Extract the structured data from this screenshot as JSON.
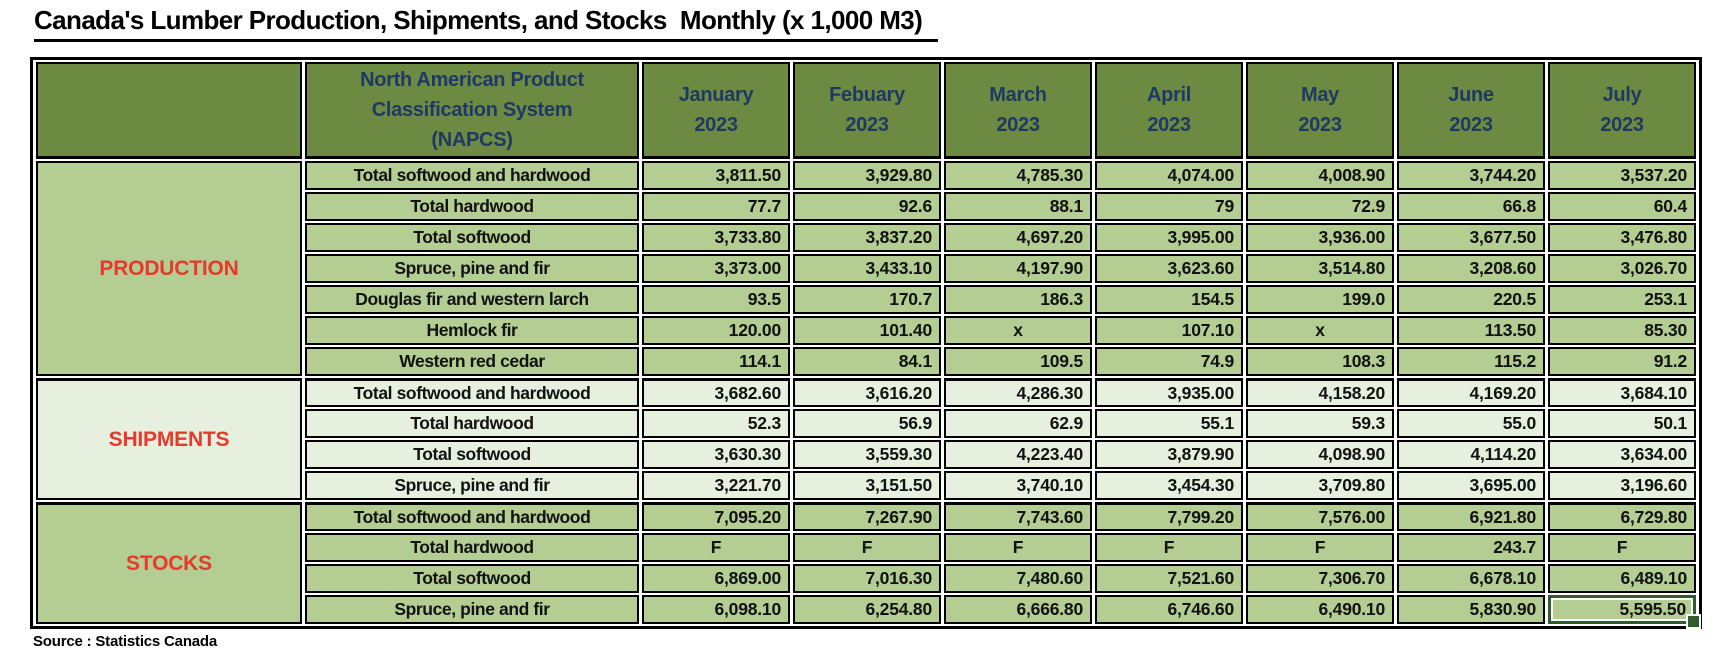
{
  "title": "Canada's Lumber Production, Shipments, and Stocks  Monthly (x 1,000 M3)",
  "source": "Source : Statistics Canada",
  "colors": {
    "header_bg": "#6d8a43",
    "header_text": "#1f3864",
    "production_stocks_bg": "#b3cd93",
    "shipments_bg": "#e7f0de",
    "section_label_text": "#e8392d",
    "border": "#000000",
    "selection_border": "#2f5c2f"
  },
  "table": {
    "napcs_header_lines": [
      "North American Product",
      "Classification System",
      "(NAPCS)"
    ],
    "months": [
      {
        "label": "January",
        "year": "2023"
      },
      {
        "label": "Febuary",
        "year": "2023"
      },
      {
        "label": "March",
        "year": "2023"
      },
      {
        "label": "April",
        "year": "2023"
      },
      {
        "label": "May",
        "year": "2023"
      },
      {
        "label": "June",
        "year": "2023"
      },
      {
        "label": "July",
        "year": "2023"
      }
    ],
    "sections": [
      {
        "label": "PRODUCTION",
        "tone": "green",
        "rows": [
          {
            "label": "Total softwood and hardwood",
            "values": [
              "3,811.50",
              "3,929.80",
              "4,785.30",
              "4,074.00",
              "4,008.90",
              "3,744.20",
              "3,537.20"
            ]
          },
          {
            "label": "Total hardwood",
            "values": [
              "77.7",
              "92.6",
              "88.1",
              "79",
              "72.9",
              "66.8",
              "60.4"
            ]
          },
          {
            "label": "Total softwood",
            "values": [
              "3,733.80",
              "3,837.20",
              "4,697.20",
              "3,995.00",
              "3,936.00",
              "3,677.50",
              "3,476.80"
            ]
          },
          {
            "label": "Spruce, pine and fir",
            "values": [
              "3,373.00",
              "3,433.10",
              "4,197.90",
              "3,623.60",
              "3,514.80",
              "3,208.60",
              "3,026.70"
            ]
          },
          {
            "label": "Douglas fir and western larch",
            "values": [
              "93.5",
              "170.7",
              "186.3",
              "154.5",
              "199.0",
              "220.5",
              "253.1"
            ]
          },
          {
            "label": "Hemlock fir",
            "values": [
              "120.00",
              "101.40",
              "x",
              "107.10",
              "x",
              "113.50",
              "85.30"
            ]
          },
          {
            "label": "Western red cedar",
            "values": [
              "114.1",
              "84.1",
              "109.5",
              "74.9",
              "108.3",
              "115.2",
              "91.2"
            ]
          }
        ]
      },
      {
        "label": "SHIPMENTS",
        "tone": "pale",
        "rows": [
          {
            "label": "Total softwood and hardwood",
            "values": [
              "3,682.60",
              "3,616.20",
              "4,286.30",
              "3,935.00",
              "4,158.20",
              "4,169.20",
              "3,684.10"
            ]
          },
          {
            "label": "Total hardwood",
            "values": [
              "52.3",
              "56.9",
              "62.9",
              "55.1",
              "59.3",
              "55.0",
              "50.1"
            ]
          },
          {
            "label": "Total softwood",
            "values": [
              "3,630.30",
              "3,559.30",
              "4,223.40",
              "3,879.90",
              "4,098.90",
              "4,114.20",
              "3,634.00"
            ]
          },
          {
            "label": "Spruce, pine and fir",
            "values": [
              "3,221.70",
              "3,151.50",
              "3,740.10",
              "3,454.30",
              "3,709.80",
              "3,695.00",
              "3,196.60"
            ]
          }
        ]
      },
      {
        "label": "STOCKS",
        "tone": "green",
        "rows": [
          {
            "label": "Total softwood and hardwood",
            "values": [
              "7,095.20",
              "7,267.90",
              "7,743.60",
              "7,799.20",
              "7,576.00",
              "6,921.80",
              "6,729.80"
            ]
          },
          {
            "label": "Total hardwood",
            "values": [
              "F",
              "F",
              "F",
              "F",
              "F",
              "243.7",
              "F"
            ]
          },
          {
            "label": "Total softwood",
            "values": [
              "6,869.00",
              "7,016.30",
              "7,480.60",
              "7,521.60",
              "7,306.70",
              "6,678.10",
              "6,489.10"
            ]
          },
          {
            "label": "Spruce, pine and fir",
            "values": [
              "6,098.10",
              "6,254.80",
              "6,666.80",
              "6,746.60",
              "6,490.10",
              "5,830.90",
              "5,595.50"
            ]
          }
        ]
      }
    ],
    "selected_cell": {
      "section": 2,
      "row": 3,
      "value": 6
    }
  }
}
